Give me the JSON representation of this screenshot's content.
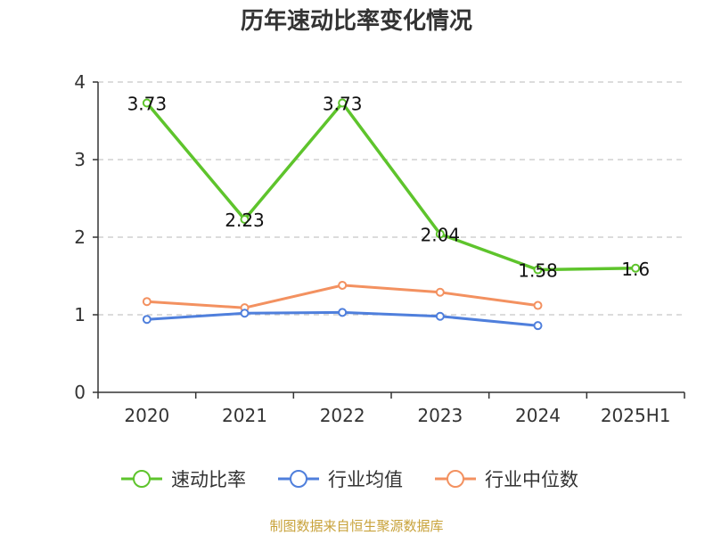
{
  "chart_data": {
    "type": "line",
    "title": "历年速动比率变化情况",
    "categories": [
      "2020",
      "2021",
      "2022",
      "2023",
      "2024",
      "2025H1"
    ],
    "yticks": [
      "0",
      "1",
      "2",
      "3",
      "4"
    ],
    "ylim": [
      0,
      4
    ],
    "grid": true,
    "legend_position": "bottom",
    "series": [
      {
        "name": "速动比率",
        "color": "#5ec42c",
        "values": [
          3.73,
          2.23,
          3.73,
          2.04,
          1.58,
          1.6
        ],
        "labels": [
          "3.73",
          "2.23",
          "3.73",
          "2.04",
          "1.58",
          "1.6"
        ]
      },
      {
        "name": "行业均值",
        "color": "#4f7fdc",
        "values": [
          0.94,
          1.02,
          1.03,
          0.98,
          0.86,
          null
        ]
      },
      {
        "name": "行业中位数",
        "color": "#f39160",
        "values": [
          1.17,
          1.09,
          1.38,
          1.29,
          1.12,
          null
        ]
      }
    ]
  },
  "source": "制图数据来自恒生聚源数据库"
}
